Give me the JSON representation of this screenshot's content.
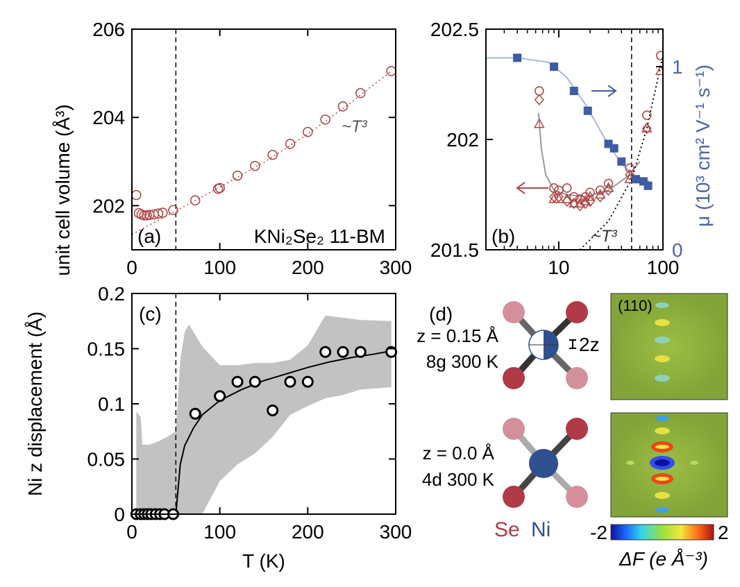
{
  "chart_data": [
    {
      "panel": "(a)",
      "type": "scatter",
      "annotation": "KNi₂Se₂ 11-BM",
      "fit_label": "~T³",
      "ylabel": "unit cell volume (Å³)",
      "xlim": [
        0,
        300
      ],
      "ylim": [
        201,
        206
      ],
      "xticks": [
        "0",
        "100",
        "200",
        "300"
      ],
      "yticks": [
        "202",
        "204",
        "206"
      ],
      "vline_x": 50,
      "colors": {
        "points": "#b04848",
        "fit": "#b04848"
      },
      "series": [
        {
          "values": [
            [
              5,
              202.24
            ],
            [
              8,
              201.83
            ],
            [
              11,
              201.8
            ],
            [
              14,
              201.78
            ],
            [
              17,
              201.78
            ],
            [
              20,
              201.79
            ],
            [
              25,
              201.8
            ],
            [
              30,
              201.82
            ],
            [
              35,
              201.84
            ],
            [
              47,
              201.9
            ],
            [
              72,
              202.12
            ],
            [
              98,
              202.38
            ],
            [
              100,
              202.4
            ],
            [
              120,
              202.68
            ],
            [
              140,
              202.9
            ],
            [
              160,
              203.15
            ],
            [
              180,
              203.4
            ],
            [
              200,
              203.67
            ],
            [
              220,
              203.95
            ],
            [
              240,
              204.25
            ],
            [
              260,
              204.55
            ],
            [
              295,
              205.05
            ]
          ]
        }
      ],
      "fit": [
        [
          0,
          201.35
        ],
        [
          50,
          201.88
        ],
        [
          100,
          202.42
        ],
        [
          150,
          202.98
        ],
        [
          200,
          203.62
        ],
        [
          250,
          204.35
        ],
        [
          295,
          205.05
        ]
      ]
    },
    {
      "panel": "(b)",
      "type": "scatter",
      "xscale": "log",
      "xlim": [
        2,
        100
      ],
      "ylim": [
        201.5,
        202.5
      ],
      "xticks": [
        "10",
        "100"
      ],
      "yticks": [
        "201.5",
        "202",
        "202.5"
      ],
      "ylabel_right": "μ (10³ cm² V⁻¹ s⁻¹)",
      "yticks_right": [
        "0",
        "1"
      ],
      "fit_label": "~T³",
      "vline_x": 50,
      "colors": {
        "volume": "#b04848",
        "mobility": "#3d5ca3",
        "mobility_fit": "#a9b6d6"
      },
      "volume_circles": [
        [
          6.5,
          202.22
        ],
        [
          9,
          201.78
        ],
        [
          10,
          201.77
        ],
        [
          12,
          201.78
        ],
        [
          14,
          201.74
        ],
        [
          16,
          201.73
        ],
        [
          18,
          201.74
        ],
        [
          20,
          201.76
        ],
        [
          25,
          201.77
        ],
        [
          30,
          201.8
        ],
        [
          48,
          201.87
        ],
        [
          70,
          202.11
        ],
        [
          95,
          202.38
        ]
      ],
      "volume_diamonds": [
        [
          6.5,
          202.18
        ],
        [
          9,
          201.74
        ],
        [
          10,
          201.74
        ],
        [
          12,
          201.72
        ],
        [
          14,
          201.71
        ],
        [
          16,
          201.7
        ],
        [
          18,
          201.71
        ],
        [
          20,
          201.72
        ],
        [
          25,
          201.74
        ],
        [
          30,
          201.77
        ],
        [
          48,
          201.84
        ],
        [
          70,
          202.05
        ]
      ],
      "volume_triangles": [
        [
          6.5,
          202.07
        ],
        [
          9,
          201.73
        ],
        [
          10,
          201.73
        ],
        [
          12,
          201.73
        ],
        [
          14,
          201.71
        ],
        [
          16,
          201.71
        ],
        [
          18,
          201.72
        ],
        [
          20,
          201.74
        ],
        [
          25,
          201.75
        ],
        [
          30,
          201.78
        ],
        [
          48,
          201.82
        ],
        [
          70,
          202.05
        ],
        [
          95,
          202.31
        ]
      ],
      "mobility_squares": [
        [
          4,
          202.37
        ],
        [
          9,
          202.33
        ],
        [
          14,
          202.22
        ],
        [
          19,
          202.13
        ],
        [
          30,
          201.98
        ],
        [
          34,
          201.96
        ],
        [
          40,
          201.9
        ],
        [
          55,
          201.82
        ],
        [
          65,
          201.81
        ],
        [
          72,
          201.79
        ]
      ],
      "volume_guide": [
        [
          6.4,
          202.12
        ],
        [
          6.8,
          201.96
        ],
        [
          7.5,
          201.84
        ],
        [
          9,
          201.77
        ],
        [
          12,
          201.75
        ],
        [
          18,
          201.74
        ],
        [
          30,
          201.77
        ],
        [
          45,
          201.83
        ],
        [
          60,
          201.9
        ]
      ],
      "mobility_guide": [
        [
          2,
          202.37
        ],
        [
          4,
          202.37
        ],
        [
          8,
          202.35
        ],
        [
          12,
          202.28
        ],
        [
          18,
          202.16
        ],
        [
          28,
          202.0
        ],
        [
          40,
          201.89
        ],
        [
          55,
          201.83
        ],
        [
          75,
          201.81
        ]
      ],
      "t3_line": [
        [
          16,
          201.5
        ],
        [
          30,
          201.63
        ],
        [
          50,
          201.82
        ],
        [
          70,
          202.05
        ],
        [
          100,
          202.38
        ]
      ],
      "arrows": {
        "left_y": 201.78,
        "right_y": 202.22
      }
    },
    {
      "panel": "(c)",
      "type": "scatter",
      "xlabel": "T (K)",
      "ylabel": "Ni z displacement (Å)",
      "xlim": [
        0,
        300
      ],
      "ylim": [
        0,
        0.2
      ],
      "xticks": [
        "0",
        "100",
        "200",
        "300"
      ],
      "yticks": [
        "0",
        "0.05",
        "0.1",
        "0.15",
        "0.2"
      ],
      "vline_x": 50,
      "colors": {
        "band": "#c2c2c2",
        "points": "#000000"
      },
      "series": [
        {
          "values": [
            [
              5,
              0
            ],
            [
              10,
              0
            ],
            [
              14,
              0
            ],
            [
              18,
              0
            ],
            [
              22,
              0
            ],
            [
              27,
              0
            ],
            [
              32,
              0
            ],
            [
              37,
              0
            ],
            [
              47,
              0
            ],
            [
              72,
              0.091
            ],
            [
              100,
              0.107
            ],
            [
              120,
              0.12
            ],
            [
              140,
              0.12
            ],
            [
              160,
              0.094
            ],
            [
              180,
              0.12
            ],
            [
              200,
              0.12
            ],
            [
              220,
              0.147
            ],
            [
              240,
              0.147
            ],
            [
              260,
              0.147
            ],
            [
              295,
              0.147
            ]
          ]
        }
      ],
      "fit": [
        [
          50,
          0
        ],
        [
          55,
          0.045
        ],
        [
          60,
          0.062
        ],
        [
          70,
          0.078
        ],
        [
          80,
          0.09
        ],
        [
          100,
          0.103
        ],
        [
          125,
          0.113
        ],
        [
          150,
          0.121
        ],
        [
          175,
          0.127
        ],
        [
          200,
          0.133
        ],
        [
          225,
          0.138
        ],
        [
          250,
          0.142
        ],
        [
          275,
          0.145
        ],
        [
          295,
          0.148
        ]
      ],
      "band_upper": [
        [
          5,
          0.093
        ],
        [
          10,
          0.088
        ],
        [
          12,
          0.063
        ],
        [
          20,
          0.063
        ],
        [
          30,
          0.066
        ],
        [
          40,
          0.07
        ],
        [
          50,
          0.075
        ],
        [
          55,
          0.14
        ],
        [
          60,
          0.165
        ],
        [
          65,
          0.172
        ],
        [
          70,
          0.165
        ],
        [
          80,
          0.152
        ],
        [
          100,
          0.135
        ],
        [
          120,
          0.135
        ],
        [
          140,
          0.137
        ],
        [
          160,
          0.137
        ],
        [
          180,
          0.14
        ],
        [
          200,
          0.153
        ],
        [
          220,
          0.18
        ],
        [
          240,
          0.178
        ],
        [
          260,
          0.176
        ],
        [
          295,
          0.175
        ]
      ],
      "band_lower": [
        [
          295,
          0.115
        ],
        [
          260,
          0.113
        ],
        [
          240,
          0.108
        ],
        [
          220,
          0.105
        ],
        [
          200,
          0.098
        ],
        [
          180,
          0.09
        ],
        [
          160,
          0.07
        ],
        [
          140,
          0.055
        ],
        [
          120,
          0.045
        ],
        [
          100,
          0.03
        ],
        [
          80,
          0.0
        ],
        [
          70,
          0.0
        ],
        [
          60,
          0.0
        ],
        [
          50,
          0.0
        ],
        [
          5,
          0.0
        ]
      ]
    }
  ],
  "panel_d": {
    "label": "(d)",
    "top_z": "z = 0.15 Å",
    "top_site": "8g  300 K",
    "bottom_z": "z = 0.0 Å",
    "bottom_site": "4d  300 K",
    "twoz_label": "2z",
    "map_label": "(110)",
    "legend_se": "Se",
    "legend_ni": "Ni",
    "colorbar_min": "-2",
    "colorbar_max": "2",
    "colorbar_label": "ΔF (e Å⁻³)",
    "colors": {
      "se": "#b03a48",
      "se_light": "#d4909a",
      "ni": "#2f4f8f",
      "map_bg": "#8aab3c"
    }
  }
}
